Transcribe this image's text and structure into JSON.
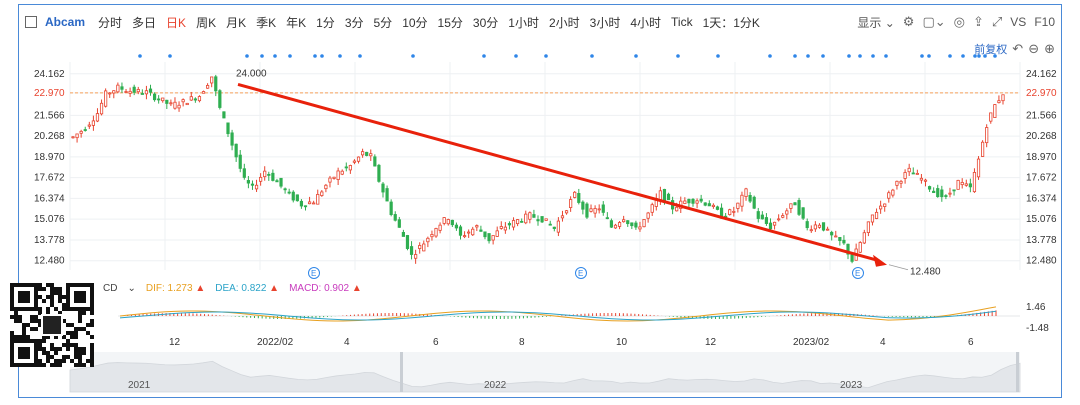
{
  "toolbar": {
    "title": "Abcam",
    "periods": [
      "分时",
      "多日",
      "日K",
      "周K",
      "月K",
      "季K",
      "年K",
      "1分",
      "3分",
      "5分",
      "10分",
      "15分",
      "30分",
      "1小时",
      "2小时",
      "3小时",
      "4小时",
      "Tick",
      "1天：1分K"
    ],
    "active_period": "日K",
    "display_label": "显示",
    "vs_label": "VS",
    "f10_label": "F10",
    "adjust_label": "前复权"
  },
  "colors": {
    "up": "#e8432e",
    "down": "#2fae51",
    "current_line": "#f5a05a",
    "trend_arrow": "#e8210b",
    "dot": "#2f86e8"
  },
  "chart_data": {
    "type": "candlestick",
    "y_ticks": [
      24.162,
      22.97,
      21.566,
      20.268,
      18.97,
      17.672,
      16.374,
      15.076,
      13.778,
      12.48
    ],
    "current_price": 22.97,
    "ylim": [
      11.9,
      24.9
    ],
    "high_label": "24.000",
    "low_label": "12.480",
    "x_ticks": [
      "12",
      "2022/02",
      "4",
      "6",
      "8",
      "10",
      "12",
      "2023/02",
      "4",
      "6"
    ],
    "trend_line": {
      "from": [
        "2022-01-02",
        24.0
      ],
      "to": [
        "2023-04-01",
        12.48
      ]
    },
    "close_path": [
      [
        0,
        20.2
      ],
      [
        3,
        20.8
      ],
      [
        6,
        21.7
      ],
      [
        8,
        22.9
      ],
      [
        11,
        23.3
      ],
      [
        14,
        23.1
      ],
      [
        18,
        23.0
      ],
      [
        21,
        22.6
      ],
      [
        24,
        22.2
      ],
      [
        27,
        22.4
      ],
      [
        31,
        22.8
      ],
      [
        34,
        24.0
      ],
      [
        36,
        22.0
      ],
      [
        38,
        20.5
      ],
      [
        40,
        19.0
      ],
      [
        42,
        17.5
      ],
      [
        44,
        17.0
      ],
      [
        47,
        18.1
      ],
      [
        50,
        17.4
      ],
      [
        53,
        16.6
      ],
      [
        56,
        16.0
      ],
      [
        59,
        16.2
      ],
      [
        62,
        17.2
      ],
      [
        65,
        18.0
      ],
      [
        68,
        18.4
      ],
      [
        71,
        19.2
      ],
      [
        73,
        19.0
      ],
      [
        75,
        17.5
      ],
      [
        78,
        15.5
      ],
      [
        81,
        14.0
      ],
      [
        83,
        12.8
      ],
      [
        86,
        13.6
      ],
      [
        89,
        14.6
      ],
      [
        92,
        15.2
      ],
      [
        95,
        14.0
      ],
      [
        99,
        14.6
      ],
      [
        102,
        13.8
      ],
      [
        105,
        14.5
      ],
      [
        109,
        15.0
      ],
      [
        112,
        15.3
      ],
      [
        115,
        15.1
      ],
      [
        118,
        14.5
      ],
      [
        121,
        15.8
      ],
      [
        123,
        16.6
      ],
      [
        126,
        15.4
      ],
      [
        129,
        15.8
      ],
      [
        132,
        14.6
      ],
      [
        135,
        15.2
      ],
      [
        138,
        14.4
      ],
      [
        141,
        15.4
      ],
      [
        144,
        16.7
      ],
      [
        147,
        15.8
      ],
      [
        150,
        16.2
      ],
      [
        153,
        16.3
      ],
      [
        156,
        16.0
      ],
      [
        159,
        15.3
      ],
      [
        162,
        15.6
      ],
      [
        165,
        16.8
      ],
      [
        168,
        15.2
      ],
      [
        171,
        14.6
      ],
      [
        174,
        15.4
      ],
      [
        177,
        16.1
      ],
      [
        180,
        14.5
      ],
      [
        183,
        14.8
      ],
      [
        186,
        14.0
      ],
      [
        189,
        13.5
      ],
      [
        191,
        12.5
      ],
      [
        193,
        13.6
      ],
      [
        196,
        15.3
      ],
      [
        199,
        16.2
      ],
      [
        202,
        17.4
      ],
      [
        205,
        18.1
      ],
      [
        208,
        17.6
      ],
      [
        211,
        16.8
      ],
      [
        214,
        16.4
      ],
      [
        217,
        17.4
      ],
      [
        220,
        17.0
      ],
      [
        222,
        18.8
      ],
      [
        224,
        21.0
      ],
      [
        226,
        22.2
      ],
      [
        228,
        22.97
      ]
    ],
    "series": [
      {
        "name": "DIF",
        "label": "DIF:",
        "value": 1.273
      },
      {
        "name": "DEA",
        "label": "DEA:",
        "value": 0.822
      },
      {
        "name": "MACD",
        "label": "MACD:",
        "value": 0.902
      }
    ],
    "macd_ticks": [
      1.46,
      -1.48
    ],
    "macd_partial_label": "CD",
    "navigator_years": [
      "2021",
      "2022",
      "2023"
    ],
    "event_markers": [
      "E",
      "E",
      "E"
    ]
  }
}
